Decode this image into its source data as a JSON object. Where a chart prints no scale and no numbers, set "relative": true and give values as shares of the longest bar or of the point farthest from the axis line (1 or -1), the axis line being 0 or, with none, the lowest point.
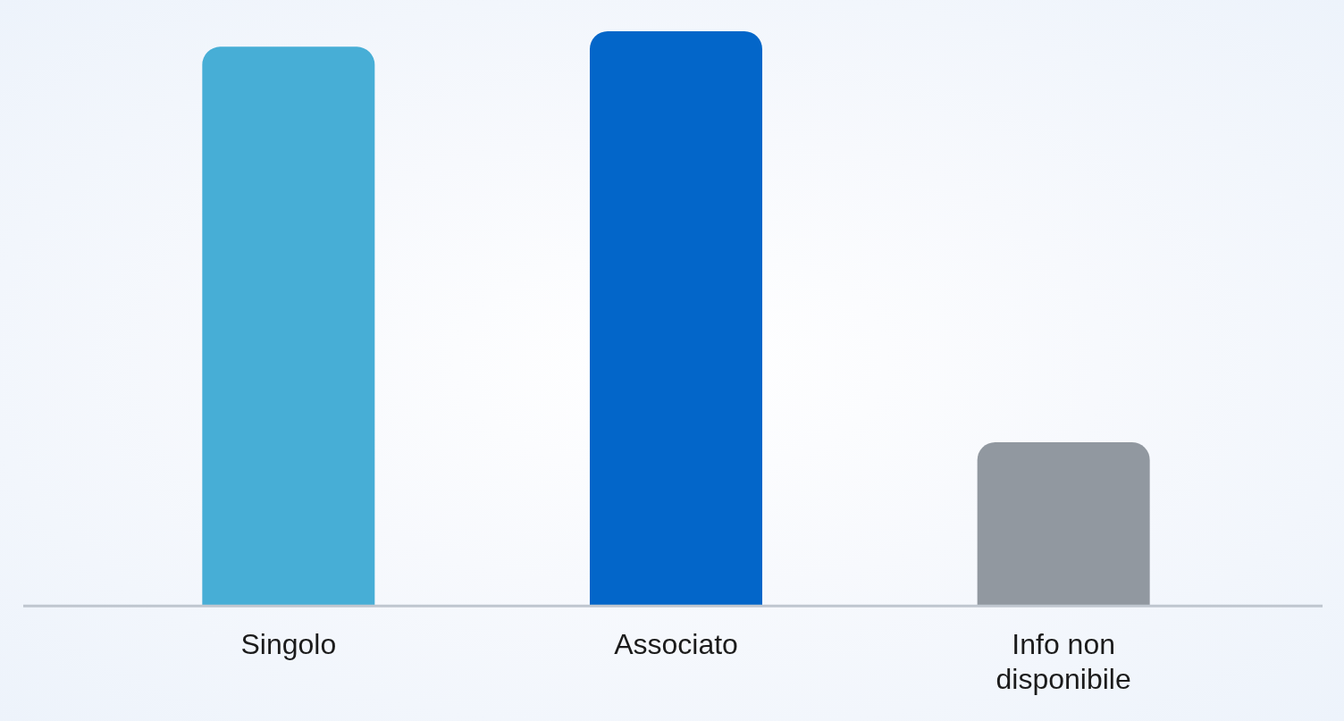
{
  "chart_data": {
    "type": "bar",
    "relative": true,
    "categories": [
      "Singolo",
      "Associato",
      "Info non disponibile"
    ],
    "values": [
      0.973,
      1,
      0.285
    ],
    "colors": [
      "#47aed6",
      "#0366c9",
      "#9198a0"
    ]
  }
}
